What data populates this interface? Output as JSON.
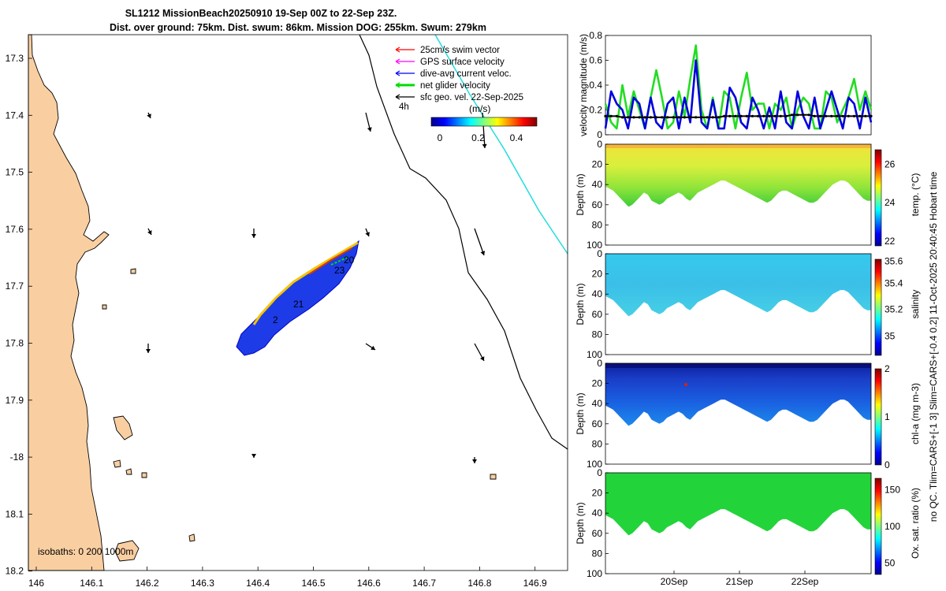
{
  "title": {
    "line1": "SL1212 MissionBeach20250910 19-Sep 00Z to 22-Sep 23Z.",
    "line2": "Dist. over ground: 75km. Dist. swum: 86km. Mission DOG: 255km. Swum: 279km"
  },
  "map": {
    "lat_ticks": [
      "17.3",
      "17.4",
      "17.5",
      "17.6",
      "17.7",
      "17.8",
      "17.9",
      "-18",
      "18.1",
      "18.2"
    ],
    "lon_ticks": [
      "146",
      "146.1",
      "146.2",
      "146.3",
      "146.4",
      "146.5",
      "146.6",
      "146.7",
      "146.8",
      "146.9"
    ],
    "legend": [
      {
        "label": "25cm/s swim vector",
        "color": "#ff0000"
      },
      {
        "label": "GPS surface velocity",
        "color": "#ff00ff"
      },
      {
        "label": "dive-avg current veloc.",
        "color": "#0000ff"
      },
      {
        "label": "net glider velocity",
        "color": "#00dd00"
      },
      {
        "label": "sfc geo. vel. 22-Sep-2025",
        "color": "#000000"
      }
    ],
    "scale_label": "4h",
    "colorbar_title": "(m/s)",
    "colorbar_ticks": [
      "0",
      "0.2",
      "0.4"
    ],
    "track_labels": [
      "20",
      "23",
      "21",
      "2"
    ],
    "isobaths_label": "isobaths: 0   200  1000m",
    "land_color": "#f9cfa2"
  },
  "chart_data": [
    {
      "type": "line",
      "title": "",
      "xlabel": "",
      "ylabel": "velocity magnitude (m/s)",
      "ylim": [
        0,
        0.8
      ],
      "yticks": [
        "0",
        "0.2",
        "0.4",
        "0.6",
        "0.8"
      ],
      "series": [
        {
          "name": "net glider velocity",
          "color": "#22dd22",
          "values": [
            0.25,
            0.1,
            0.05,
            0.4,
            0.15,
            0.35,
            0.2,
            0.05,
            0.3,
            0.52,
            0.3,
            0.05,
            0.1,
            0.35,
            0.15,
            0.45,
            0.72,
            0.2,
            0.05,
            0.3,
            0.05,
            0.35,
            0.3,
            0.05,
            0.3,
            0.5,
            0.2,
            0.25,
            0.25,
            0.05,
            0.25,
            0.2,
            0.3,
            0.05,
            0.2,
            0.3,
            0.25,
            0.05,
            0.05,
            0.35,
            0.3,
            0.1,
            0.2,
            0.3,
            0.45,
            0.2,
            0.35,
            0.2
          ]
        },
        {
          "name": "dive-avg current veloc.",
          "color": "#0000dd",
          "values": [
            0.05,
            0.35,
            0.25,
            0.2,
            0.05,
            0.3,
            0.25,
            0.05,
            0.3,
            0.1,
            0.05,
            0.25,
            0.3,
            0.05,
            0.3,
            0.1,
            0.6,
            0.1,
            0.05,
            0.28,
            0.05,
            0.05,
            0.38,
            0.3,
            0.1,
            0.05,
            0.3,
            0.2,
            0.05,
            0.22,
            0.05,
            0.35,
            0.1,
            0.05,
            0.35,
            0.15,
            0.05,
            0.3,
            0.05,
            0.2,
            0.35,
            0.2,
            0.05,
            0.3,
            0.25,
            0.05,
            0.3,
            0.1
          ]
        },
        {
          "name": "sfc geo. vel.",
          "color": "#000000",
          "values": [
            0.15,
            0.15,
            0.15,
            0.14,
            0.14,
            0.14,
            0.14,
            0.14,
            0.14,
            0.14,
            0.14,
            0.14,
            0.14,
            0.14,
            0.14,
            0.14,
            0.14,
            0.14,
            0.14,
            0.14,
            0.14,
            0.15,
            0.15,
            0.15,
            0.15,
            0.15,
            0.15,
            0.15,
            0.15,
            0.15,
            0.15,
            0.15,
            0.15,
            0.16,
            0.16,
            0.16,
            0.16,
            0.15,
            0.15,
            0.15,
            0.15,
            0.15,
            0.15,
            0.15,
            0.15,
            0.15,
            0.15,
            0.15
          ]
        }
      ]
    },
    {
      "type": "heatmap",
      "title": "",
      "xlabel": "",
      "ylabel": "Depth (m)",
      "colorbar_label": "temp. (°C)",
      "colorbar_ticks": [
        "22",
        "24",
        "26"
      ],
      "yticks": [
        "0",
        "20",
        "40",
        "60",
        "80",
        "100"
      ],
      "ylim": [
        0,
        100
      ]
    },
    {
      "type": "heatmap",
      "title": "",
      "xlabel": "",
      "ylabel": "Depth (m)",
      "colorbar_label": "salinity",
      "colorbar_ticks": [
        "35",
        "35.2",
        "35.4",
        "35.6"
      ],
      "yticks": [
        "0",
        "20",
        "40",
        "60",
        "80",
        "100"
      ],
      "ylim": [
        0,
        100
      ]
    },
    {
      "type": "heatmap",
      "title": "",
      "xlabel": "",
      "ylabel": "Depth (m)",
      "colorbar_label": "chl-a (mg m-3)",
      "colorbar_ticks": [
        "0",
        "1",
        "2"
      ],
      "yticks": [
        "0",
        "20",
        "40",
        "60",
        "80",
        "100"
      ],
      "ylim": [
        0,
        100
      ]
    },
    {
      "type": "heatmap",
      "title": "",
      "xlabel": "",
      "ylabel": "Depth (m)",
      "colorbar_label": "Ox. sat. ratio (%)",
      "colorbar_ticks": [
        "50",
        "100",
        "150"
      ],
      "yticks": [
        "0",
        "20",
        "40",
        "60",
        "80",
        "100"
      ],
      "ylim": [
        0,
        100
      ],
      "xticks": [
        "20Sep",
        "21Sep",
        "22Sep"
      ]
    }
  ],
  "side_note": "no QC. Tlim=CARS+[-1 3] Slim=CARS+[-0.4 0.2] 11-Oct-2025 20:40:45 Hobart time"
}
